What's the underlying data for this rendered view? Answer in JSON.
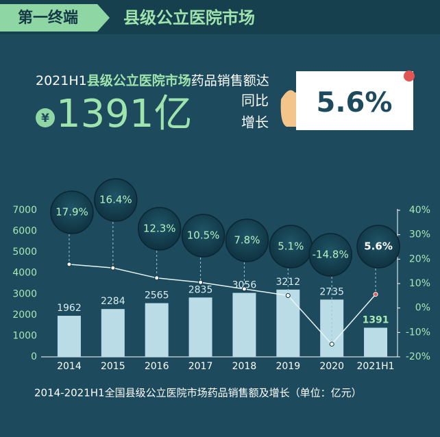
{
  "header": {
    "tag": "第一终端",
    "title": "县级公立医院市场"
  },
  "headline": {
    "period": "2021H1",
    "market": "县级公立医院市场",
    "text": "药品销售额达",
    "currency": "¥",
    "amount": "1391亿",
    "growth_label_1": "同比",
    "growth_label_2": "增长",
    "growth": "5.6%"
  },
  "chart_data": {
    "type": "bar",
    "caption": "2014-2021H1全国县级公立医院市场药品销售额及增长（单位：亿元）",
    "categories": [
      "2014",
      "2015",
      "2016",
      "2017",
      "2018",
      "2019",
      "2020",
      "2021H1"
    ],
    "series": [
      {
        "type": "bar",
        "color": "#b9dce6",
        "values": [
          1962,
          2284,
          2565,
          2835,
          3056,
          3212,
          2735,
          1391
        ]
      },
      {
        "type": "line",
        "axis": "y2",
        "color": "#e8f4f6",
        "values": [
          17.9,
          16.4,
          12.3,
          10.5,
          7.8,
          5.1,
          -14.8,
          5.6
        ],
        "value_labels": [
          "17.9%",
          "16.4%",
          "12.3%",
          "10.5%",
          "7.8%",
          "5.1%",
          "-14.8%",
          "5.6%"
        ]
      }
    ],
    "ylim": [
      0,
      7000
    ],
    "yticks": [
      0,
      1000,
      2000,
      3000,
      4000,
      5000,
      6000,
      7000
    ],
    "y2lim": [
      -20,
      40
    ],
    "y2ticks": [
      {
        "value": -20,
        "label": "-20%"
      },
      {
        "value": -10,
        "label": "-10%"
      },
      {
        "value": 0,
        "label": "0%"
      },
      {
        "value": 10,
        "label": "10%"
      },
      {
        "value": 20,
        "label": "20%"
      },
      {
        "value": 30,
        "label": "30%"
      },
      {
        "value": 40,
        "label": "40%"
      }
    ],
    "grid": false
  }
}
